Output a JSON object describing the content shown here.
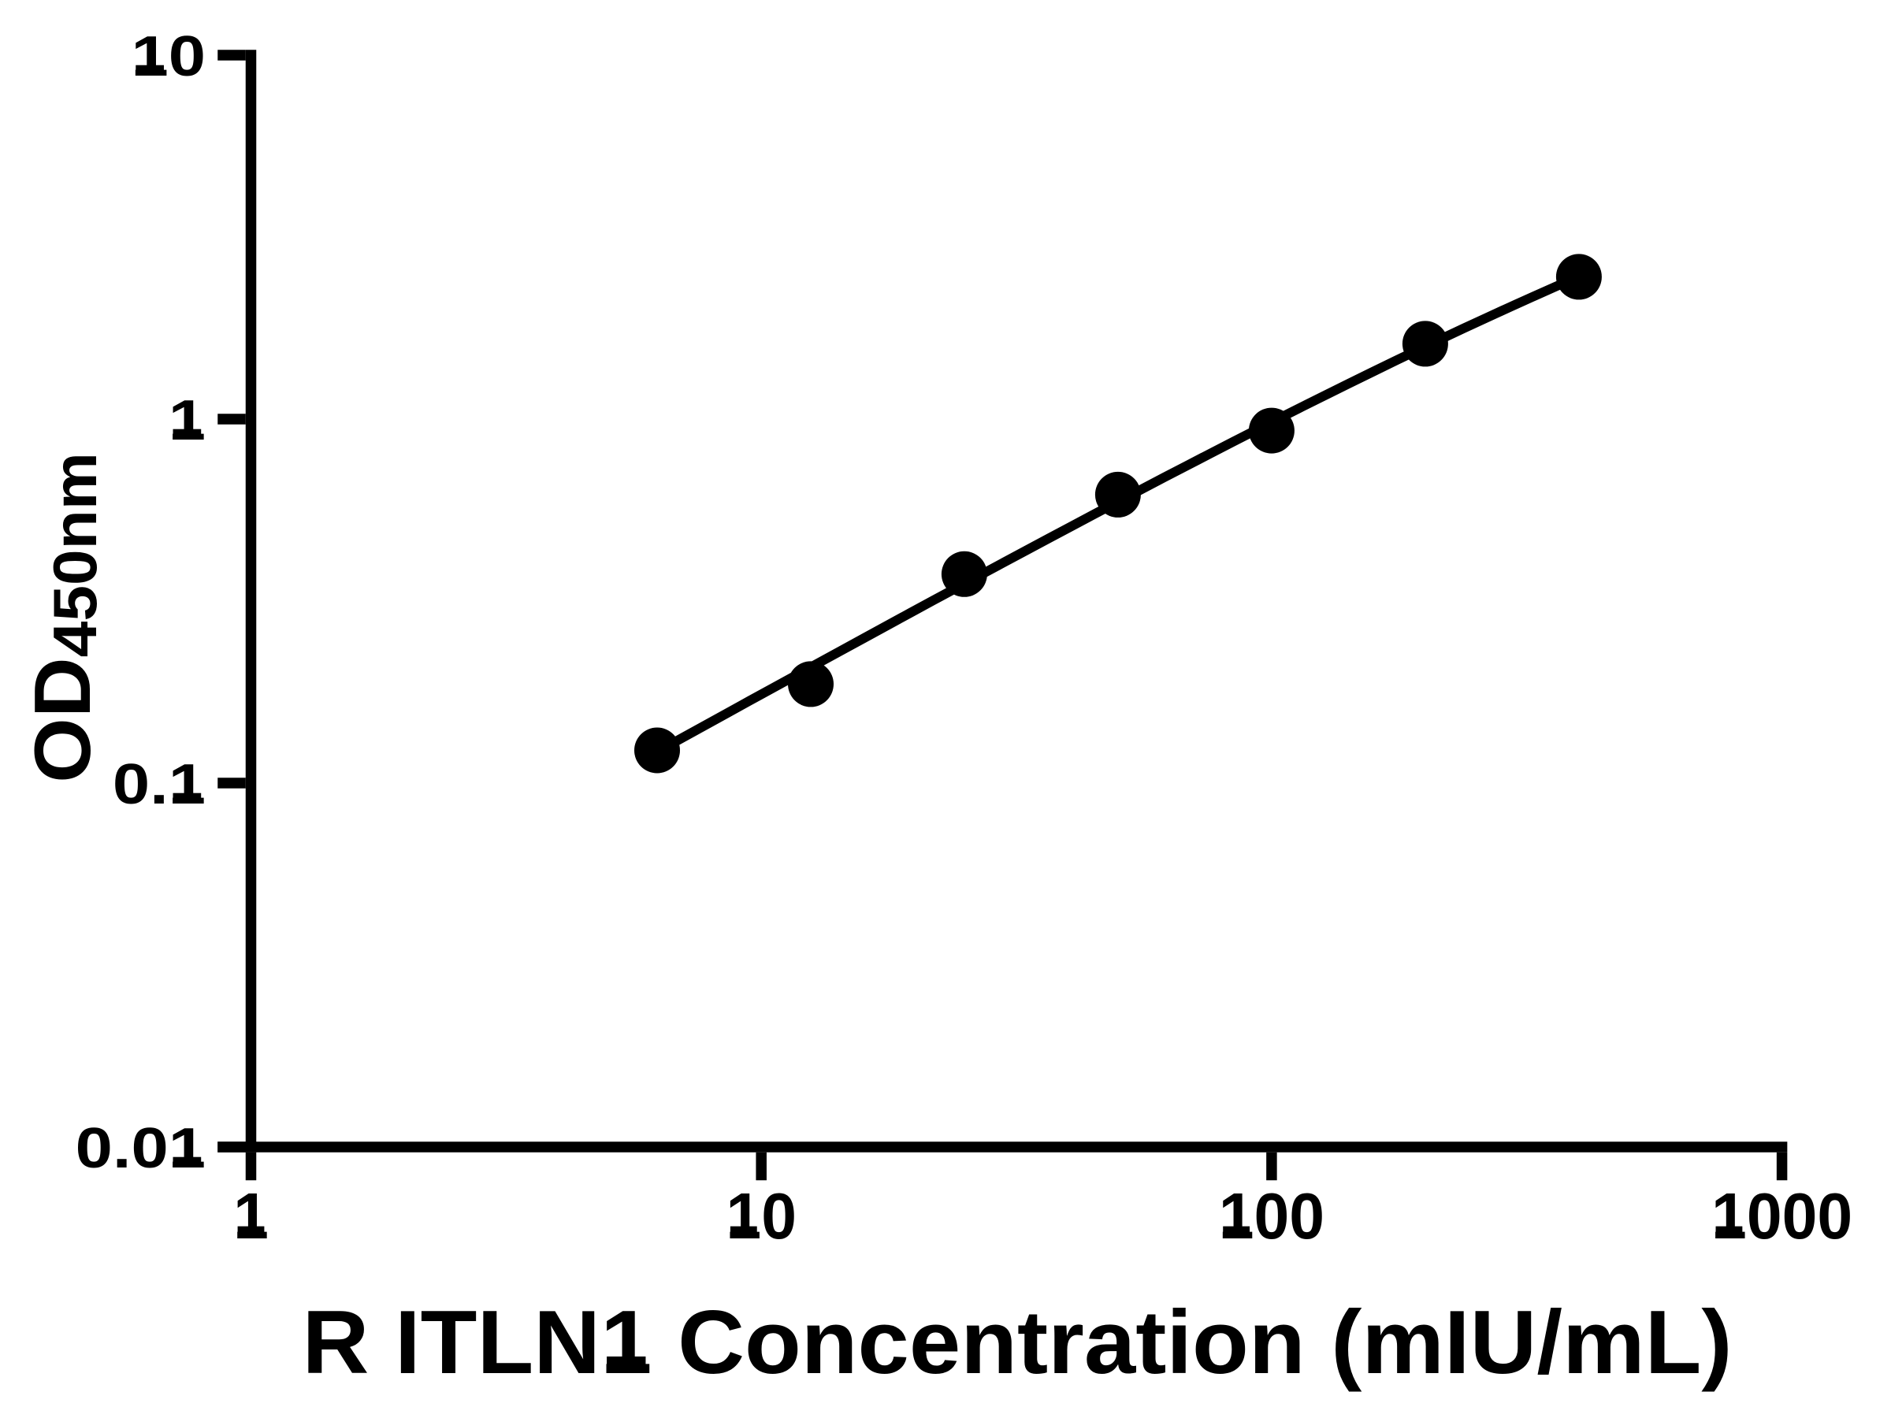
{
  "chart_data": {
    "type": "scatter",
    "title": "",
    "xlabel": "R ITLN1 Concentration (mIU/mL)",
    "ylabel_base": "OD",
    "ylabel_subscript": "450nm",
    "x_scale": "log",
    "y_scale": "log",
    "xlim": [
      1,
      1000
    ],
    "ylim": [
      0.01,
      10
    ],
    "grid": false,
    "legend": "none",
    "x_ticks": {
      "values": [
        1,
        10,
        100,
        1000
      ],
      "labels": [
        "1",
        "10",
        "100",
        "1000"
      ]
    },
    "y_ticks": {
      "values": [
        0.01,
        0.1,
        1,
        10
      ],
      "labels": [
        "0.01",
        "0.1",
        "1",
        "10"
      ]
    },
    "series": [
      {
        "name": "standard-curve-points",
        "marker": "filled-circle",
        "points": [
          {
            "x": 6.25,
            "y": 0.123
          },
          {
            "x": 12.5,
            "y": 0.187
          },
          {
            "x": 25,
            "y": 0.375
          },
          {
            "x": 50,
            "y": 0.62
          },
          {
            "x": 100,
            "y": 0.93
          },
          {
            "x": 200,
            "y": 1.61
          },
          {
            "x": 400,
            "y": 2.46
          }
        ]
      }
    ],
    "fit_curve": {
      "x": [
        6.25,
        6.93,
        7.69,
        8.54,
        9.47,
        10.51,
        11.66,
        12.94,
        14.36,
        15.93,
        17.68,
        19.61,
        21.76,
        24.15,
        26.79,
        29.73,
        32.99,
        36.6,
        40.61,
        45.06,
        50.0,
        55.48,
        61.56,
        68.3,
        75.79,
        84.09,
        93.3,
        103.53,
        114.87,
        127.46,
        141.42,
        156.92,
        174.11,
        193.19,
        214.35,
        237.84,
        263.9,
        292.82,
        324.9,
        360.5,
        400.0
      ],
      "y": [
        0.1218,
        0.132,
        0.1431,
        0.1551,
        0.1681,
        0.1821,
        0.1973,
        0.2137,
        0.2315,
        0.2506,
        0.2714,
        0.2937,
        0.3179,
        0.344,
        0.3721,
        0.4025,
        0.4352,
        0.4704,
        0.5083,
        0.5492,
        0.5931,
        0.6404,
        0.6911,
        0.7455,
        0.804,
        0.8666,
        0.9336,
        1.0053,
        1.0819,
        1.1636,
        1.2507,
        1.3435,
        1.4422,
        1.5469,
        1.6579,
        1.7754,
        1.8996,
        2.0305,
        2.1683,
        2.3131,
        2.4649
      ]
    },
    "colors": {
      "ink": "#000000",
      "background": "#ffffff"
    }
  }
}
